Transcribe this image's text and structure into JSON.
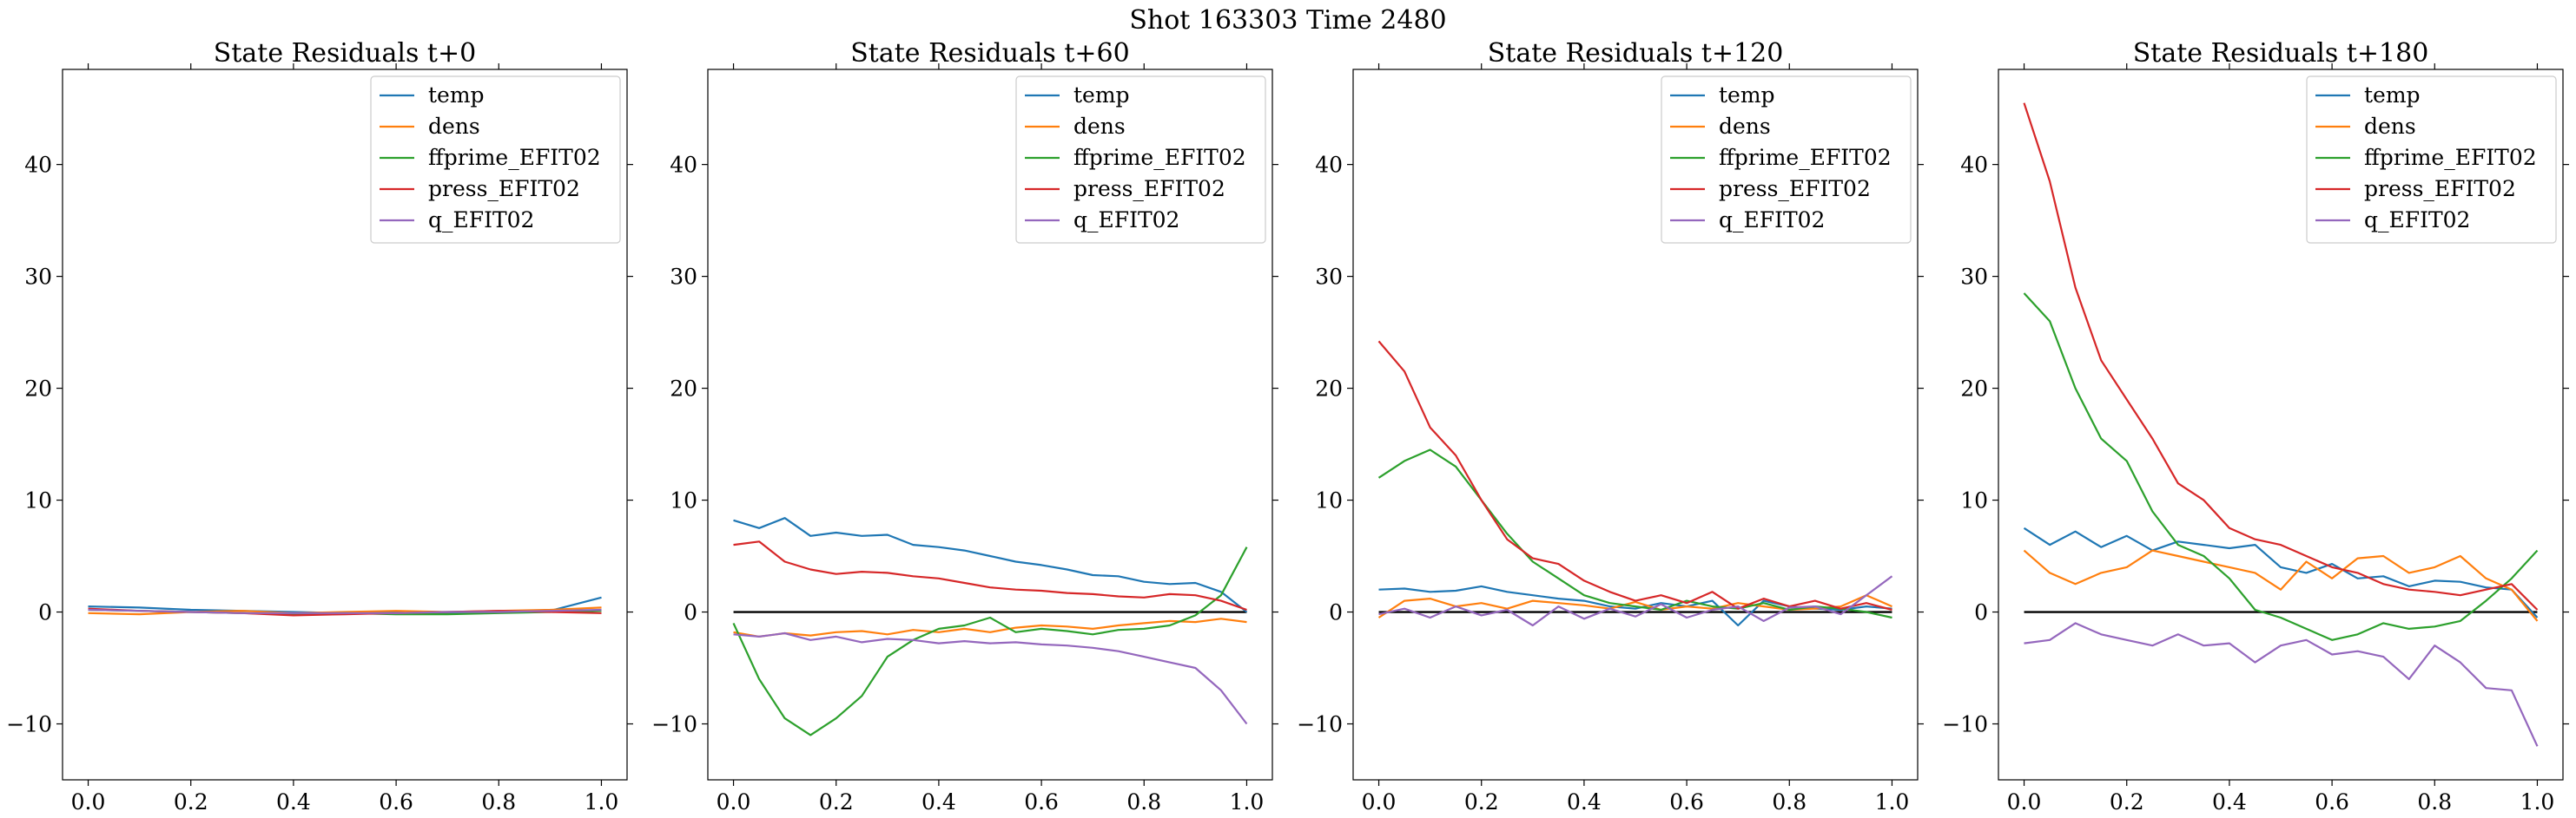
{
  "figure": {
    "suptitle": "Shot 163303   Time 2480"
  },
  "colors": {
    "temp": "#1f77b4",
    "dens": "#ff7f0e",
    "ffprime_EFIT02": "#2ca02c",
    "press_EFIT02": "#d62728",
    "q_EFIT02": "#9467bd",
    "zero_line": "#000000"
  },
  "chart_data": [
    {
      "type": "line",
      "title": "State Residuals t+0",
      "xlabel": "",
      "ylabel": "",
      "xlim": [
        -0.05,
        1.05
      ],
      "ylim": [
        -15,
        48.5
      ],
      "xticks": [
        "0.0",
        "0.2",
        "0.4",
        "0.6",
        "0.8",
        "1.0"
      ],
      "yticks": [
        "−10",
        "0",
        "10",
        "20",
        "30",
        "40"
      ],
      "legend_position": "top-right",
      "zero_line": [
        0,
        1
      ],
      "x": [
        0.0,
        0.1,
        0.2,
        0.3,
        0.4,
        0.5,
        0.6,
        0.7,
        0.8,
        0.9,
        1.0
      ],
      "series": [
        {
          "name": "temp",
          "values": [
            0.5,
            0.4,
            0.2,
            0.1,
            0.0,
            -0.1,
            0.0,
            -0.1,
            0.0,
            0.1,
            1.3
          ]
        },
        {
          "name": "dens",
          "values": [
            -0.1,
            -0.2,
            0.0,
            0.1,
            -0.1,
            0.0,
            0.1,
            0.0,
            0.1,
            0.2,
            0.4
          ]
        },
        {
          "name": "ffprime_EFIT02",
          "values": [
            0.2,
            0.1,
            0.0,
            -0.1,
            -0.2,
            -0.1,
            -0.2,
            -0.2,
            -0.1,
            0.0,
            0.1
          ]
        },
        {
          "name": "press_EFIT02",
          "values": [
            0.3,
            0.1,
            0.0,
            -0.1,
            -0.3,
            -0.2,
            -0.1,
            0.0,
            0.1,
            0.0,
            -0.1
          ]
        },
        {
          "name": "q_EFIT02",
          "values": [
            0.2,
            0.1,
            0.0,
            -0.1,
            -0.1,
            -0.1,
            -0.1,
            0.0,
            0.0,
            0.1,
            0.2
          ]
        }
      ]
    },
    {
      "type": "line",
      "title": "State Residuals t+60",
      "xlabel": "",
      "ylabel": "",
      "xlim": [
        -0.05,
        1.05
      ],
      "ylim": [
        -15,
        48.5
      ],
      "xticks": [
        "0.0",
        "0.2",
        "0.4",
        "0.6",
        "0.8",
        "1.0"
      ],
      "yticks": [
        "−10",
        "0",
        "10",
        "20",
        "30",
        "40"
      ],
      "legend_position": "top-right",
      "zero_line": [
        0,
        1
      ],
      "x": [
        0.0,
        0.05,
        0.1,
        0.15,
        0.2,
        0.25,
        0.3,
        0.35,
        0.4,
        0.45,
        0.5,
        0.55,
        0.6,
        0.65,
        0.7,
        0.75,
        0.8,
        0.85,
        0.9,
        0.95,
        1.0
      ],
      "series": [
        {
          "name": "temp",
          "values": [
            8.2,
            7.5,
            8.4,
            6.8,
            7.1,
            6.8,
            6.9,
            6.0,
            5.8,
            5.5,
            5.0,
            4.5,
            4.2,
            3.8,
            3.3,
            3.2,
            2.7,
            2.5,
            2.6,
            1.8,
            0.0
          ]
        },
        {
          "name": "dens",
          "values": [
            -1.8,
            -2.2,
            -1.9,
            -2.1,
            -1.8,
            -1.7,
            -2.0,
            -1.6,
            -1.8,
            -1.5,
            -1.8,
            -1.4,
            -1.2,
            -1.3,
            -1.5,
            -1.2,
            -1.0,
            -0.8,
            -0.9,
            -0.6,
            -0.9
          ]
        },
        {
          "name": "ffprime_EFIT02",
          "values": [
            -1.0,
            -6.0,
            -9.5,
            -11.0,
            -9.5,
            -7.5,
            -4.0,
            -2.5,
            -1.5,
            -1.2,
            -0.5,
            -1.8,
            -1.5,
            -1.7,
            -2.0,
            -1.6,
            -1.5,
            -1.2,
            -0.3,
            1.5,
            5.8
          ]
        },
        {
          "name": "press_EFIT02",
          "values": [
            6.0,
            6.3,
            4.5,
            3.8,
            3.4,
            3.6,
            3.5,
            3.2,
            3.0,
            2.6,
            2.2,
            2.0,
            1.9,
            1.7,
            1.6,
            1.4,
            1.3,
            1.6,
            1.5,
            1.0,
            0.2
          ]
        },
        {
          "name": "q_EFIT02",
          "values": [
            -2.0,
            -2.2,
            -1.9,
            -2.5,
            -2.2,
            -2.7,
            -2.4,
            -2.5,
            -2.8,
            -2.6,
            -2.8,
            -2.7,
            -2.9,
            -3.0,
            -3.2,
            -3.5,
            -4.0,
            -4.5,
            -5.0,
            -7.0,
            -10.0
          ]
        }
      ]
    },
    {
      "type": "line",
      "title": "State Residuals t+120",
      "xlabel": "",
      "ylabel": "",
      "xlim": [
        -0.05,
        1.05
      ],
      "ylim": [
        -15,
        48.5
      ],
      "xticks": [
        "0.0",
        "0.2",
        "0.4",
        "0.6",
        "0.8",
        "1.0"
      ],
      "yticks": [
        "−10",
        "0",
        "10",
        "20",
        "30",
        "40"
      ],
      "legend_position": "top-right",
      "zero_line": [
        0,
        1
      ],
      "x": [
        0.0,
        0.05,
        0.1,
        0.15,
        0.2,
        0.25,
        0.3,
        0.35,
        0.4,
        0.45,
        0.5,
        0.55,
        0.6,
        0.65,
        0.7,
        0.75,
        0.8,
        0.85,
        0.9,
        0.95,
        1.0
      ],
      "series": [
        {
          "name": "temp",
          "values": [
            2.0,
            2.1,
            1.8,
            1.9,
            2.3,
            1.8,
            1.5,
            1.2,
            1.0,
            0.5,
            0.3,
            0.8,
            0.5,
            1.0,
            -1.2,
            1.0,
            0.5,
            0.3,
            0.2,
            0.5,
            0.3
          ]
        },
        {
          "name": "dens",
          "values": [
            -0.5,
            1.0,
            1.2,
            0.5,
            0.8,
            0.3,
            1.0,
            0.8,
            0.6,
            0.3,
            0.9,
            0.2,
            0.5,
            0.3,
            0.8,
            0.5,
            0.2,
            0.3,
            0.5,
            1.5,
            0.5
          ]
        },
        {
          "name": "ffprime_EFIT02",
          "values": [
            12.0,
            13.5,
            14.5,
            13.0,
            10.0,
            7.0,
            4.5,
            3.0,
            1.5,
            0.8,
            0.5,
            0.2,
            1.0,
            0.5,
            0.3,
            0.8,
            0.2,
            0.5,
            0.3,
            0.0,
            -0.5
          ]
        },
        {
          "name": "press_EFIT02",
          "values": [
            24.2,
            21.5,
            16.5,
            14.0,
            10.0,
            6.5,
            4.8,
            4.3,
            2.8,
            1.8,
            1.0,
            1.5,
            0.8,
            1.8,
            0.3,
            1.2,
            0.5,
            1.0,
            0.3,
            0.8,
            0.2
          ]
        },
        {
          "name": "q_EFIT02",
          "values": [
            -0.2,
            0.3,
            -0.5,
            0.5,
            -0.3,
            0.2,
            -1.2,
            0.5,
            -0.6,
            0.3,
            -0.4,
            0.7,
            -0.5,
            0.2,
            0.5,
            -0.8,
            0.4,
            0.5,
            -0.2,
            1.5,
            3.2
          ]
        }
      ]
    },
    {
      "type": "line",
      "title": "State Residuals t+180",
      "xlabel": "",
      "ylabel": "",
      "xlim": [
        -0.05,
        1.05
      ],
      "ylim": [
        -15,
        48.5
      ],
      "xticks": [
        "0.0",
        "0.2",
        "0.4",
        "0.6",
        "0.8",
        "1.0"
      ],
      "yticks": [
        "−10",
        "0",
        "10",
        "20",
        "30",
        "40"
      ],
      "legend_position": "top-right",
      "zero_line": [
        0,
        1
      ],
      "x": [
        0.0,
        0.05,
        0.1,
        0.15,
        0.2,
        0.25,
        0.3,
        0.35,
        0.4,
        0.45,
        0.5,
        0.55,
        0.6,
        0.65,
        0.7,
        0.75,
        0.8,
        0.85,
        0.9,
        0.95,
        1.0
      ],
      "series": [
        {
          "name": "temp",
          "values": [
            7.5,
            6.0,
            7.2,
            5.8,
            6.8,
            5.5,
            6.3,
            6.0,
            5.7,
            6.0,
            4.0,
            3.5,
            4.3,
            3.0,
            3.2,
            2.3,
            2.8,
            2.7,
            2.2,
            2.0,
            -0.5
          ]
        },
        {
          "name": "dens",
          "values": [
            5.5,
            3.5,
            2.5,
            3.5,
            4.0,
            5.5,
            5.0,
            4.5,
            4.0,
            3.5,
            2.0,
            4.5,
            3.0,
            4.8,
            5.0,
            3.5,
            4.0,
            5.0,
            3.0,
            2.0,
            -0.8
          ]
        },
        {
          "name": "ffprime_EFIT02",
          "values": [
            28.5,
            26.0,
            20.0,
            15.5,
            13.5,
            9.0,
            6.0,
            5.0,
            3.0,
            0.2,
            -0.5,
            -1.5,
            -2.5,
            -2.0,
            -1.0,
            -1.5,
            -1.3,
            -0.8,
            1.0,
            3.0,
            5.5
          ]
        },
        {
          "name": "press_EFIT02",
          "values": [
            45.5,
            38.5,
            29.0,
            22.5,
            19.0,
            15.5,
            11.5,
            10.0,
            7.5,
            6.5,
            6.0,
            5.0,
            4.0,
            3.5,
            2.5,
            2.0,
            1.8,
            1.5,
            2.0,
            2.5,
            0.2
          ]
        },
        {
          "name": "q_EFIT02",
          "values": [
            -2.8,
            -2.5,
            -1.0,
            -2.0,
            -2.5,
            -3.0,
            -2.0,
            -3.0,
            -2.8,
            -4.5,
            -3.0,
            -2.5,
            -3.8,
            -3.5,
            -4.0,
            -6.0,
            -3.0,
            -4.5,
            -6.8,
            -7.0,
            -12.0
          ]
        }
      ]
    }
  ]
}
